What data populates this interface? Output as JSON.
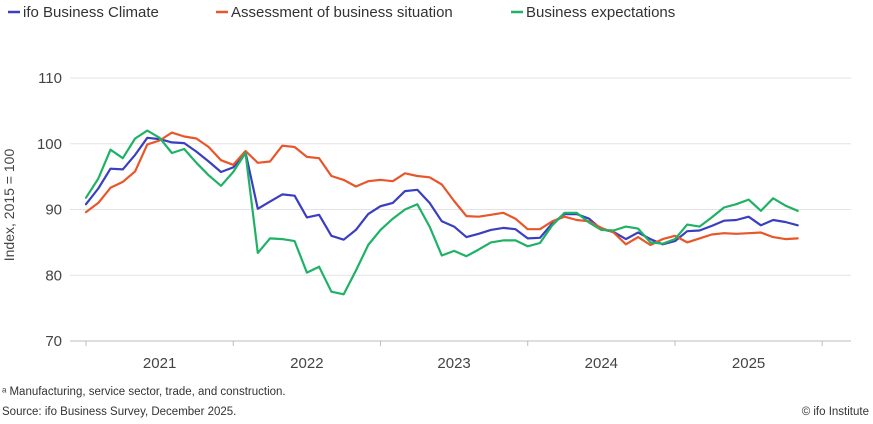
{
  "chart_data": {
    "type": "line",
    "title": "",
    "xlabel": "",
    "ylabel": "Index, 2015 = 100",
    "ylim": [
      70,
      110
    ],
    "yticks": [
      "70",
      "80",
      "90",
      "100",
      "110"
    ],
    "year_labels": [
      "2021",
      "2022",
      "2023",
      "2024",
      "2025"
    ],
    "x_start": "2020-07",
    "x_end": "2025-12",
    "grid": true,
    "legend_position": "top-left",
    "series": [
      {
        "name": "ifo Business Climate",
        "color": "#3a3fc0",
        "values": [
          90.8,
          93.2,
          96.2,
          96.1,
          98.3,
          100.9,
          100.7,
          100.2,
          100.1,
          98.8,
          97.3,
          95.7,
          96.4,
          98.7,
          90.1,
          91.2,
          92.3,
          92.1,
          88.8,
          89.2,
          86.0,
          85.4,
          86.9,
          89.3,
          90.5,
          91.0,
          92.8,
          93.0,
          91.0,
          88.2,
          87.4,
          85.8,
          86.3,
          86.9,
          87.2,
          87.0,
          85.6,
          85.7,
          87.9,
          89.3,
          89.3,
          88.6,
          87.0,
          86.6,
          85.5,
          86.5,
          85.5,
          84.7,
          85.2,
          86.7,
          86.8,
          87.5,
          88.3,
          88.4,
          88.9,
          87.6,
          88.4,
          88.1,
          87.6
        ]
      },
      {
        "name": "Assessment of business situation",
        "color": "#e8562a",
        "values": [
          89.6,
          91.0,
          93.3,
          94.2,
          95.8,
          99.9,
          100.5,
          101.7,
          101.1,
          100.8,
          99.5,
          97.5,
          96.8,
          98.9,
          97.1,
          97.3,
          99.7,
          99.5,
          98.0,
          97.8,
          95.1,
          94.5,
          93.5,
          94.3,
          94.5,
          94.3,
          95.5,
          95.1,
          94.9,
          93.8,
          91.3,
          89.0,
          88.9,
          89.2,
          89.5,
          88.6,
          87.0,
          87.0,
          88.2,
          88.9,
          88.4,
          88.2,
          87.2,
          86.5,
          84.7,
          85.8,
          84.6,
          85.5,
          86.0,
          85.0,
          85.6,
          86.2,
          86.4,
          86.3,
          86.4,
          86.5,
          85.8,
          85.5,
          85.6
        ]
      },
      {
        "name": "Business expectations",
        "color": "#1fb266",
        "values": [
          91.8,
          94.7,
          99.1,
          97.8,
          100.8,
          102.0,
          100.9,
          98.6,
          99.2,
          97.1,
          95.2,
          93.6,
          95.7,
          98.6,
          83.4,
          85.6,
          85.5,
          85.2,
          80.4,
          81.3,
          77.5,
          77.1,
          80.7,
          84.6,
          86.9,
          88.6,
          90.0,
          90.8,
          87.4,
          83.0,
          83.7,
          82.9,
          83.9,
          85.0,
          85.3,
          85.3,
          84.4,
          84.9,
          87.6,
          89.5,
          89.5,
          88.0,
          86.9,
          86.8,
          87.4,
          87.1,
          85.0,
          84.8,
          85.5,
          87.7,
          87.4,
          88.8,
          90.3,
          90.8,
          91.5,
          89.8,
          91.7,
          90.6,
          89.8
        ]
      }
    ]
  },
  "footer": {
    "note": "ᵃ Manufacturing, service sector, trade, and construction.",
    "source": "Source: ifo Business Survey, December 2025.",
    "copyright": "© ifo Institute"
  }
}
